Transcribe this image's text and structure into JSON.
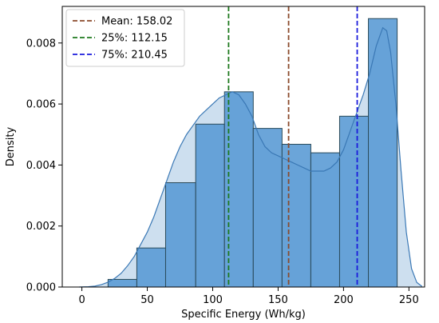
{
  "chart_data": {
    "type": "bar",
    "subtype": "histogram-with-kde",
    "xlabel": "Specific Energy (Wh/kg)",
    "ylabel": "Density",
    "xlim": [
      -15,
      262
    ],
    "ylim": [
      0,
      0.0092
    ],
    "xticks": [
      0,
      50,
      100,
      150,
      200,
      250
    ],
    "yticks": [
      0,
      0.002,
      0.004,
      0.006,
      0.008
    ],
    "ytick_labels": [
      "0.000",
      "0.002",
      "0.004",
      "0.006",
      "0.008"
    ],
    "grid": false,
    "bar_color": "#5b9bd5",
    "bar_edge_color": "#2a4a5a",
    "bins": [
      {
        "x0": 20,
        "x1": 42,
        "value": 0.00025
      },
      {
        "x0": 42,
        "x1": 64,
        "value": 0.00128
      },
      {
        "x0": 64,
        "x1": 87,
        "value": 0.00342
      },
      {
        "x0": 87,
        "x1": 109,
        "value": 0.00534
      },
      {
        "x0": 109,
        "x1": 131,
        "value": 0.0064
      },
      {
        "x0": 131,
        "x1": 153,
        "value": 0.0052
      },
      {
        "x0": 153,
        "x1": 175,
        "value": 0.00468
      },
      {
        "x0": 175,
        "x1": 197,
        "value": 0.0044
      },
      {
        "x0": 197,
        "x1": 219,
        "value": 0.0056
      },
      {
        "x0": 219,
        "x1": 241,
        "value": 0.0088
      }
    ],
    "kde": {
      "color": "#3a78b5",
      "fill_color": "#bcd4ea",
      "x": [
        -2,
        5,
        10,
        15,
        20,
        25,
        30,
        35,
        40,
        45,
        50,
        55,
        60,
        65,
        70,
        75,
        80,
        85,
        90,
        95,
        100,
        105,
        110,
        115,
        120,
        125,
        130,
        135,
        140,
        145,
        150,
        155,
        160,
        165,
        170,
        175,
        180,
        185,
        190,
        195,
        200,
        205,
        210,
        215,
        220,
        225,
        230,
        233,
        236,
        240,
        244,
        248,
        252,
        256,
        260
      ],
      "y": [
        0.0,
        1e-05,
        3e-05,
        8e-05,
        0.00016,
        0.00028,
        0.00045,
        0.0007,
        0.001,
        0.0014,
        0.0018,
        0.0023,
        0.0029,
        0.0035,
        0.0041,
        0.0046,
        0.005,
        0.0053,
        0.0056,
        0.0058,
        0.006,
        0.0062,
        0.0063,
        0.0064,
        0.0063,
        0.006,
        0.0056,
        0.005,
        0.0046,
        0.0044,
        0.0043,
        0.0042,
        0.0041,
        0.004,
        0.0039,
        0.0038,
        0.0038,
        0.0038,
        0.0039,
        0.0041,
        0.0045,
        0.0051,
        0.0057,
        0.0063,
        0.007,
        0.0079,
        0.0085,
        0.0084,
        0.0077,
        0.006,
        0.0038,
        0.0018,
        0.0006,
        0.00015,
        2e-05
      ]
    },
    "reference_lines": [
      {
        "label": "Mean: 158.02",
        "x": 158.02,
        "color": "#8b4a2b",
        "style": "dashed"
      },
      {
        "label": "25%: 112.15",
        "x": 112.15,
        "color": "#1e7a1e",
        "style": "dashed"
      },
      {
        "label": "75%: 210.45",
        "x": 210.45,
        "color": "#1a1adc",
        "style": "dashed"
      }
    ],
    "legend_position": "top-left"
  }
}
